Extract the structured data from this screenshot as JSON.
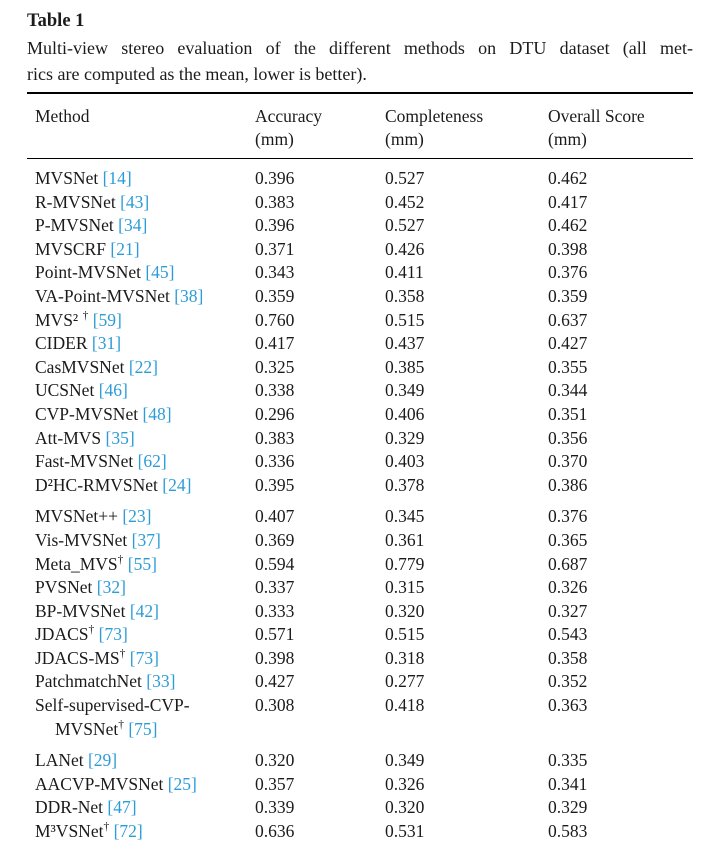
{
  "title": "Table 1",
  "caption_lines": [
    "Multi-view stereo evaluation of the different methods on DTU dataset (all met-",
    "rics are computed as the mean, lower is better)."
  ],
  "link_color": "#2b9cd8",
  "table": {
    "columns": [
      {
        "label": "Method",
        "unit": ""
      },
      {
        "label": "Accuracy",
        "unit": "(mm)"
      },
      {
        "label": "Completeness",
        "unit": "(mm)"
      },
      {
        "label": "Overall Score",
        "unit": "(mm)"
      }
    ],
    "rows": [
      {
        "name": "MVSNet",
        "cite": "[14]",
        "accuracy": "0.396",
        "completeness": "0.527",
        "overall": "0.462"
      },
      {
        "name": "R-MVSNet",
        "cite": "[43]",
        "accuracy": "0.383",
        "completeness": "0.452",
        "overall": "0.417"
      },
      {
        "name": "P-MVSNet",
        "cite": "[34]",
        "accuracy": "0.396",
        "completeness": "0.527",
        "overall": "0.462"
      },
      {
        "name": "MVSCRF",
        "cite": "[21]",
        "accuracy": "0.371",
        "completeness": "0.426",
        "overall": "0.398"
      },
      {
        "name": "Point-MVSNet",
        "cite": "[45]",
        "accuracy": "0.343",
        "completeness": "0.411",
        "overall": "0.376"
      },
      {
        "name": "VA-Point-MVSNet",
        "cite": "[38]",
        "accuracy": "0.359",
        "completeness": "0.358",
        "overall": "0.359"
      },
      {
        "name": "MVS² †",
        "cite": "[59]",
        "accuracy": "0.760",
        "completeness": "0.515",
        "overall": "0.637"
      },
      {
        "name": "CIDER",
        "cite": "[31]",
        "accuracy": "0.417",
        "completeness": "0.437",
        "overall": "0.427"
      },
      {
        "name": "CasMVSNet",
        "cite": "[22]",
        "accuracy": "0.325",
        "completeness": "0.385",
        "overall": "0.355"
      },
      {
        "name": "UCSNet",
        "cite": "[46]",
        "accuracy": "0.338",
        "completeness": "0.349",
        "overall": "0.344"
      },
      {
        "name": "CVP-MVSNet",
        "cite": "[48]",
        "accuracy": "0.296",
        "completeness": "0.406",
        "overall": "0.351"
      },
      {
        "name": "Att-MVS",
        "cite": "[35]",
        "accuracy": "0.383",
        "completeness": "0.329",
        "overall": "0.356"
      },
      {
        "name": "Fast-MVSNet",
        "cite": "[62]",
        "accuracy": "0.336",
        "completeness": "0.403",
        "overall": "0.370"
      },
      {
        "name": "D²HC-RMVSNet",
        "cite": "[24]",
        "accuracy": "0.395",
        "completeness": "0.378",
        "overall": "0.386"
      },
      {
        "name": "MVSNet++",
        "cite": "[23]",
        "accuracy": "0.407",
        "completeness": "0.345",
        "overall": "0.376",
        "group_start": true
      },
      {
        "name": "Vis-MVSNet",
        "cite": "[37]",
        "accuracy": "0.369",
        "completeness": "0.361",
        "overall": "0.365"
      },
      {
        "name": "Meta_MVS†",
        "cite": "[55]",
        "accuracy": "0.594",
        "completeness": "0.779",
        "overall": "0.687"
      },
      {
        "name": "PVSNet",
        "cite": "[32]",
        "accuracy": "0.337",
        "completeness": "0.315",
        "overall": "0.326"
      },
      {
        "name": "BP-MVSNet",
        "cite": "[42]",
        "accuracy": "0.333",
        "completeness": "0.320",
        "overall": "0.327"
      },
      {
        "name": "JDACS†",
        "cite": "[73]",
        "accuracy": "0.571",
        "completeness": "0.515",
        "overall": "0.543"
      },
      {
        "name": "JDACS-MS†",
        "cite": "[73]",
        "accuracy": "0.398",
        "completeness": "0.318",
        "overall": "0.358"
      },
      {
        "name": "PatchmatchNet",
        "cite": "[33]",
        "accuracy": "0.427",
        "completeness": "0.277",
        "overall": "0.352"
      },
      {
        "name": "Self-supervised-CVP-MVSNet†",
        "cite": "[75]",
        "accuracy": "0.308",
        "completeness": "0.418",
        "overall": "0.363"
      },
      {
        "name": "LANet",
        "cite": "[29]",
        "accuracy": "0.320",
        "completeness": "0.349",
        "overall": "0.335",
        "group_start": true
      },
      {
        "name": "AACVP-MVSNet",
        "cite": "[25]",
        "accuracy": "0.357",
        "completeness": "0.326",
        "overall": "0.341"
      },
      {
        "name": "DDR-Net",
        "cite": "[47]",
        "accuracy": "0.339",
        "completeness": "0.320",
        "overall": "0.329"
      },
      {
        "name": "M³VSNet†",
        "cite": "[72]",
        "accuracy": "0.636",
        "completeness": "0.531",
        "overall": "0.583"
      }
    ]
  }
}
